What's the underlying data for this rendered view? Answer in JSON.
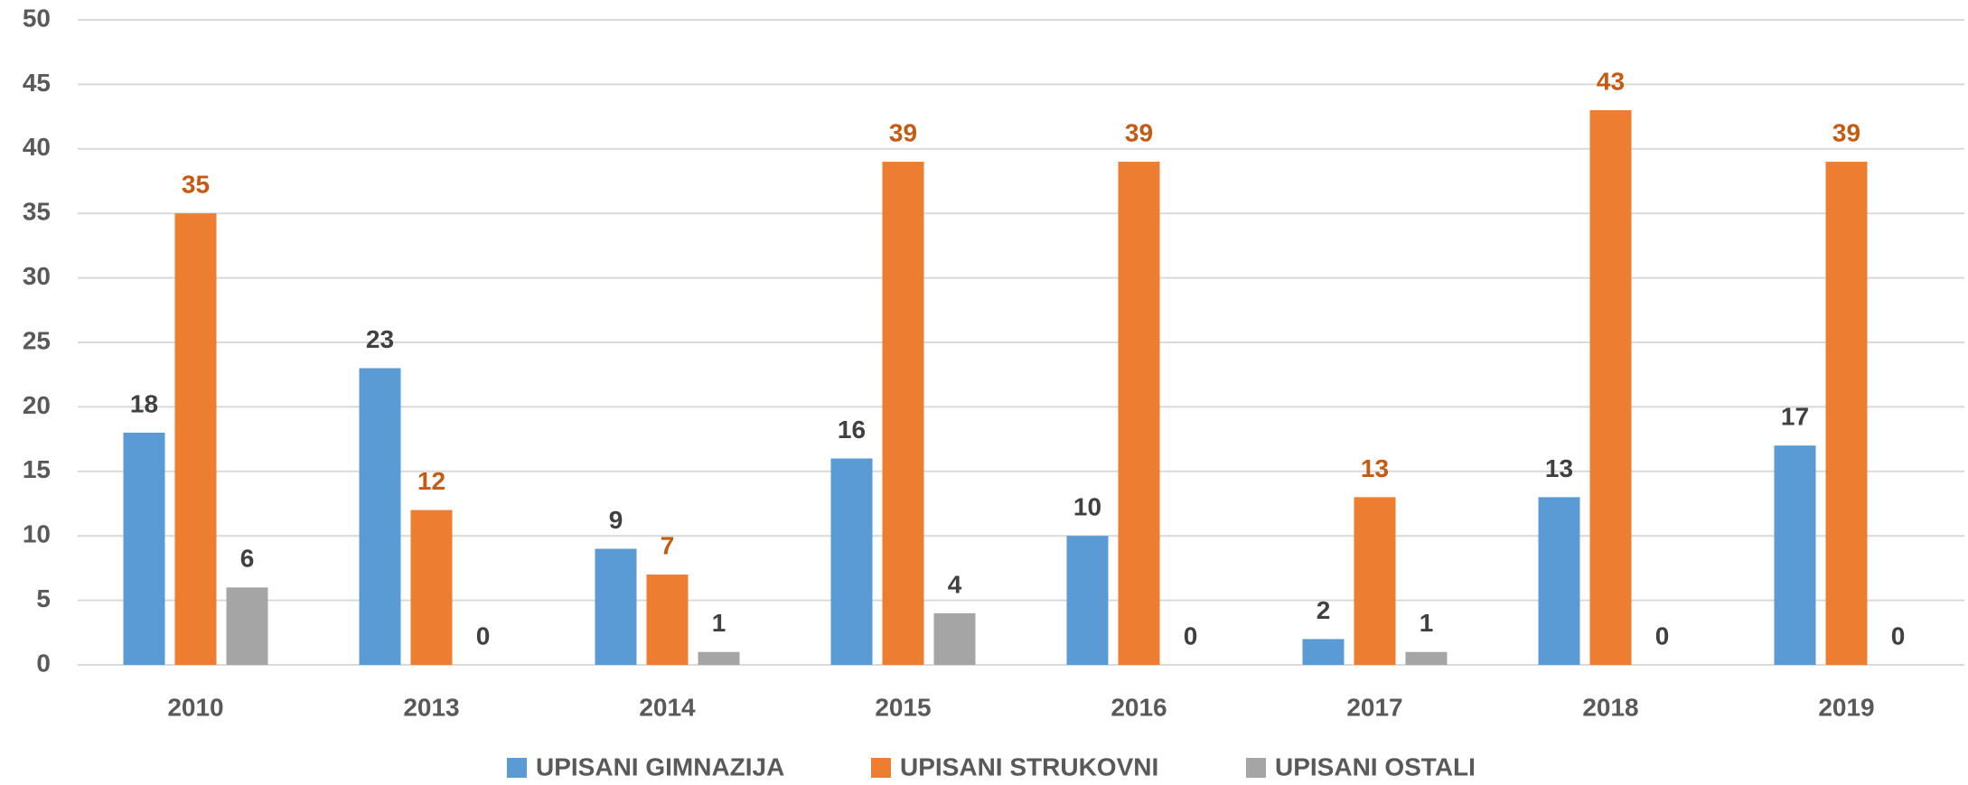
{
  "chart_data": {
    "type": "bar",
    "categories": [
      "2010",
      "2013",
      "2014",
      "2015",
      "2016",
      "2017",
      "2018",
      "2019"
    ],
    "series": [
      {
        "name": "UPISANI GIMNAZIJA",
        "color": "#5b9bd5",
        "label_color": "#404040",
        "values": [
          18,
          23,
          9,
          16,
          10,
          2,
          13,
          17
        ]
      },
      {
        "name": "UPISANI STRUKOVNI",
        "color": "#ed7d31",
        "label_color": "#c55a11",
        "values": [
          35,
          12,
          7,
          39,
          39,
          13,
          43,
          39
        ]
      },
      {
        "name": "UPISANI OSTALI",
        "color": "#a5a5a5",
        "label_color": "#404040",
        "values": [
          6,
          0,
          1,
          4,
          0,
          1,
          0,
          0
        ]
      }
    ],
    "ylim": [
      0,
      50
    ],
    "yticks": [
      0,
      5,
      10,
      15,
      20,
      25,
      30,
      35,
      40,
      45,
      50
    ],
    "grid": true,
    "legend": "bottom"
  }
}
